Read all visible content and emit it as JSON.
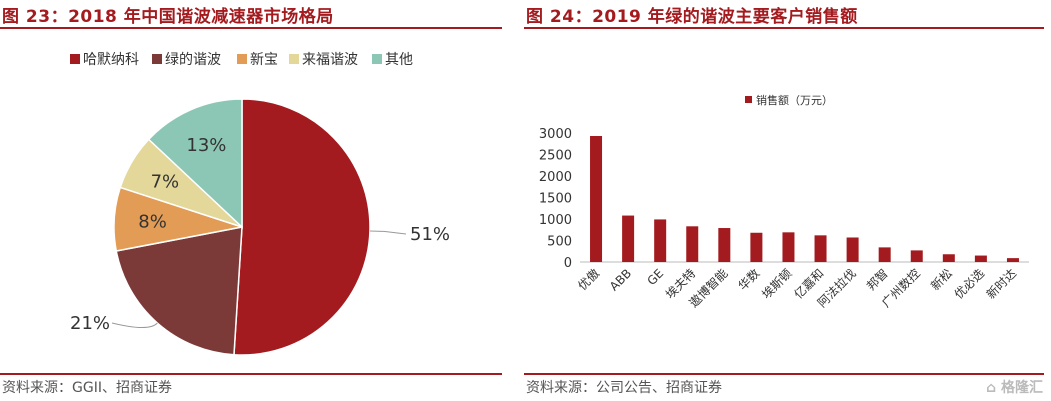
{
  "left": {
    "title": "图 23：2018 年中国谐波减速器市场格局",
    "source": "资料来源：GGII、招商证券"
  },
  "right": {
    "title": "图 24：2019 年绿的谐波主要客户销售额",
    "source": "资料来源：公司公告、招商证券"
  },
  "watermark": "格隆汇",
  "colors": {
    "title": "#a31b1f",
    "bar": "#a31b1f",
    "pie": [
      "#a31b1f",
      "#7b3a38",
      "#e39c55",
      "#e3d79a",
      "#8cc7b5"
    ]
  },
  "chart_data": [
    {
      "type": "pie",
      "title": "",
      "legend_position": "top",
      "labels": [
        "哈默纳科",
        "绿的谐波",
        "新宝",
        "来福谐波",
        "其他"
      ],
      "values": [
        51,
        21,
        8,
        7,
        13
      ],
      "value_labels": [
        "51%",
        "21%",
        "8%",
        "7%",
        "13%"
      ]
    },
    {
      "type": "bar",
      "title": "",
      "legend_position": "top",
      "series": [
        {
          "name": "销售额（万元）",
          "values": [
            2930,
            1080,
            990,
            830,
            790,
            680,
            690,
            620,
            570,
            340,
            270,
            180,
            150,
            90
          ]
        }
      ],
      "categories": [
        "优傲",
        "ABB",
        "GE",
        "埃夫特",
        "遨博智能",
        "华数",
        "埃斯顿",
        "亿嘉和",
        "阿法拉伐",
        "邦智",
        "广州数控",
        "新松",
        "优必选",
        "新时达"
      ],
      "ylim": [
        0,
        3000
      ],
      "yticks": [
        0,
        500,
        1000,
        1500,
        2000,
        2500,
        3000
      ],
      "grid": false
    }
  ]
}
